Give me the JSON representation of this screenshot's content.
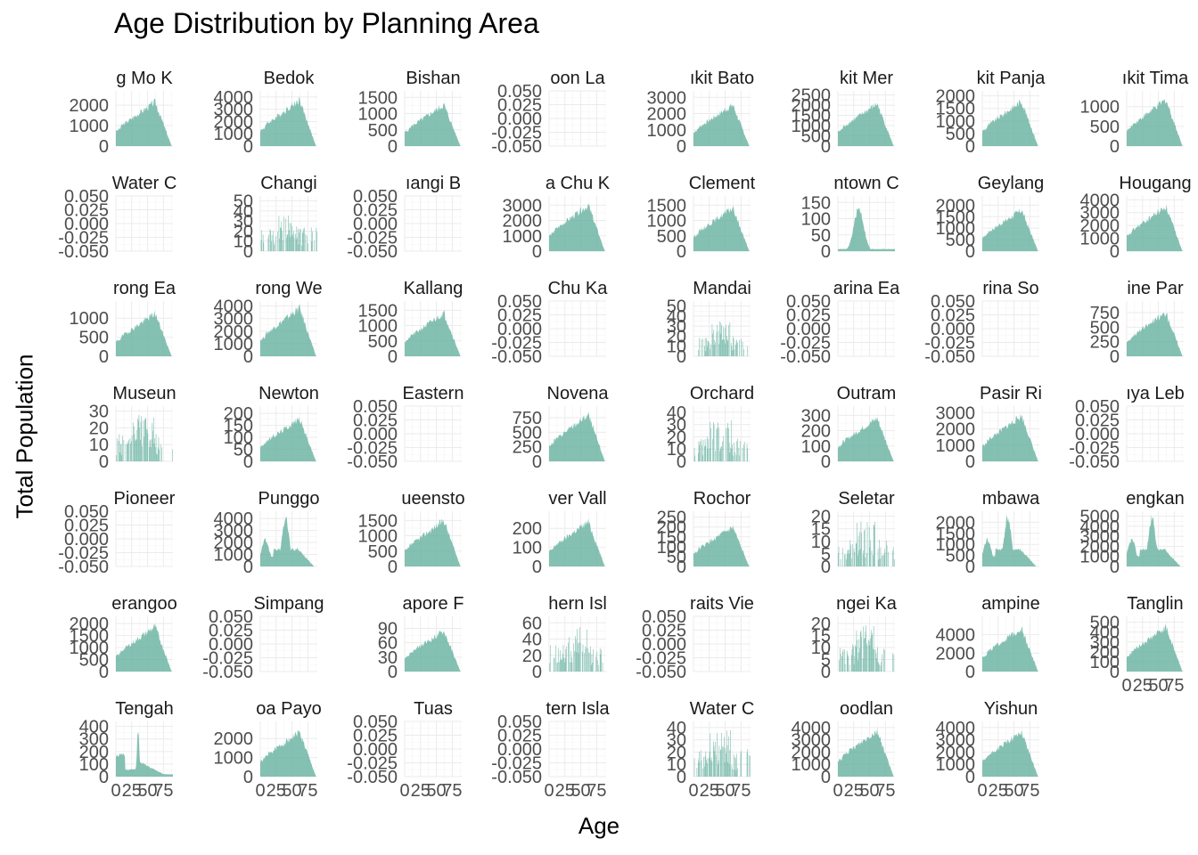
{
  "chart_data": {
    "type": "area",
    "title": "Age Distribution by Planning Area",
    "xlabel": "Age",
    "ylabel": "Total Population",
    "fill_color": "#66b2a0",
    "x_ticks": [
      "0",
      "25",
      "50",
      "75"
    ],
    "xlim": [
      0,
      90
    ],
    "grid": true,
    "facets": [
      {
        "name": "Ang Mo Kio",
        "strip": "g Mo K",
        "yticks": [
          "0",
          "1000",
          "2000"
        ],
        "ymax": 2700,
        "total": 2300,
        "shape": "broad"
      },
      {
        "name": "Bedok",
        "strip": "Bedok",
        "yticks": [
          "0",
          "1000",
          "2000",
          "3000",
          "4000"
        ],
        "ymax": 4500,
        "total": 4000,
        "shape": "broad"
      },
      {
        "name": "Bishan",
        "strip": "Bishan",
        "yticks": [
          "0",
          "500",
          "1000",
          "1500"
        ],
        "ymax": 1700,
        "total": 1350,
        "shape": "broad"
      },
      {
        "name": "Boon Lay",
        "strip": "oon La",
        "yticks": [
          "-0.050",
          "-0.025",
          "0.000",
          "0.025",
          "0.050"
        ],
        "ymax": 0,
        "total": 0,
        "shape": "empty"
      },
      {
        "name": "Bukit Batok",
        "strip": "ıkit Bato",
        "yticks": [
          "0",
          "1000",
          "2000",
          "3000"
        ],
        "ymax": 3400,
        "total": 2700,
        "shape": "broad"
      },
      {
        "name": "Bukit Merah",
        "strip": "kit Mer",
        "yticks": [
          "0",
          "500",
          "1000",
          "1500",
          "2000",
          "2500"
        ],
        "ymax": 2700,
        "total": 2200,
        "shape": "broad"
      },
      {
        "name": "Bukit Panjang",
        "strip": "kit Panja",
        "yticks": [
          "0",
          "500",
          "1000",
          "1500",
          "2000"
        ],
        "ymax": 2200,
        "total": 1900,
        "shape": "broad"
      },
      {
        "name": "Bukit Timah",
        "strip": "ıkit Tima",
        "yticks": [
          "0",
          "500",
          "1000"
        ],
        "ymax": 1400,
        "total": 1250,
        "shape": "broad"
      },
      {
        "name": "Central Water Catchment",
        "strip": "Water C",
        "yticks": [
          "-0.050",
          "-0.025",
          "0.000",
          "0.025",
          "0.050"
        ],
        "ymax": 0,
        "total": 0,
        "shape": "empty"
      },
      {
        "name": "Changi",
        "strip": "Changi",
        "yticks": [
          "0",
          "10",
          "20",
          "30",
          "40",
          "50"
        ],
        "ymax": 55,
        "total": 40,
        "shape": "spiky"
      },
      {
        "name": "Changi Bay",
        "strip": "ıangi B",
        "yticks": [
          "-0.050",
          "-0.025",
          "0.000",
          "0.025",
          "0.050"
        ],
        "ymax": 0,
        "total": 0,
        "shape": "empty"
      },
      {
        "name": "Choa Chu Kang",
        "strip": "a Chu K",
        "yticks": [
          "0",
          "1000",
          "2000",
          "3000"
        ],
        "ymax": 3600,
        "total": 3200,
        "shape": "broad"
      },
      {
        "name": "Clementi",
        "strip": "Clement",
        "yticks": [
          "0",
          "500",
          "1000",
          "1500"
        ],
        "ymax": 1800,
        "total": 1500,
        "shape": "broad"
      },
      {
        "name": "Downtown Core",
        "strip": "ntown C",
        "yticks": [
          "0",
          "50",
          "100",
          "150"
        ],
        "ymax": 170,
        "total": 130,
        "shape": "young"
      },
      {
        "name": "Geylang",
        "strip": "Geylang",
        "yticks": [
          "0",
          "500",
          "1000",
          "1500",
          "2000"
        ],
        "ymax": 2400,
        "total": 1900,
        "shape": "broad"
      },
      {
        "name": "Hougang",
        "strip": "Hougang",
        "yticks": [
          "0",
          "1000",
          "2000",
          "3000",
          "4000"
        ],
        "ymax": 4300,
        "total": 3700,
        "shape": "broad"
      },
      {
        "name": "Jurong East",
        "strip": "rong Ea",
        "yticks": [
          "0",
          "500",
          "1000"
        ],
        "ymax": 1450,
        "total": 1200,
        "shape": "broad"
      },
      {
        "name": "Jurong West",
        "strip": "rong We",
        "yticks": [
          "0",
          "1000",
          "2000",
          "3000",
          "4000"
        ],
        "ymax": 4400,
        "total": 4100,
        "shape": "broad"
      },
      {
        "name": "Kallang",
        "strip": "Kallang",
        "yticks": [
          "0",
          "500",
          "1000",
          "1500"
        ],
        "ymax": 1800,
        "total": 1500,
        "shape": "broad"
      },
      {
        "name": "Lim Chu Kang",
        "strip": "Chu Ka",
        "yticks": [
          "-0.050",
          "-0.025",
          "0.000",
          "0.025",
          "0.050"
        ],
        "ymax": 0,
        "total": 0,
        "shape": "empty"
      },
      {
        "name": "Mandai",
        "strip": "Mandai",
        "yticks": [
          "0",
          "10",
          "20",
          "30",
          "40",
          "50"
        ],
        "ymax": 55,
        "total": 35,
        "shape": "spiky"
      },
      {
        "name": "Marina East",
        "strip": "arina Ea",
        "yticks": [
          "-0.050",
          "-0.025",
          "0.000",
          "0.025",
          "0.050"
        ],
        "ymax": 0,
        "total": 0,
        "shape": "empty"
      },
      {
        "name": "Marina South",
        "strip": "rina So",
        "yticks": [
          "-0.050",
          "-0.025",
          "0.000",
          "0.025",
          "0.050"
        ],
        "ymax": 0,
        "total": 0,
        "shape": "empty"
      },
      {
        "name": "Marine Parade",
        "strip": "ine Par",
        "yticks": [
          "0",
          "250",
          "500",
          "750"
        ],
        "ymax": 950,
        "total": 800,
        "shape": "broad"
      },
      {
        "name": "Museum",
        "strip": "Museun",
        "yticks": [
          "0",
          "10",
          "20",
          "30"
        ],
        "ymax": 33,
        "total": 28,
        "shape": "spiky"
      },
      {
        "name": "Newton",
        "strip": "Newton",
        "yticks": [
          "0",
          "50",
          "100",
          "150",
          "200"
        ],
        "ymax": 230,
        "total": 190,
        "shape": "broad"
      },
      {
        "name": "North-Eastern Islands",
        "strip": "Eastern",
        "yticks": [
          "-0.050",
          "-0.025",
          "0.000",
          "0.025",
          "0.050"
        ],
        "ymax": 0,
        "total": 0,
        "shape": "empty"
      },
      {
        "name": "Novena",
        "strip": "Novena",
        "yticks": [
          "0",
          "250",
          "500",
          "750"
        ],
        "ymax": 950,
        "total": 850,
        "shape": "broad"
      },
      {
        "name": "Orchard",
        "strip": "Orchard",
        "yticks": [
          "0",
          "10",
          "20",
          "30",
          "40"
        ],
        "ymax": 45,
        "total": 35,
        "shape": "spiky"
      },
      {
        "name": "Outram",
        "strip": "Outram",
        "yticks": [
          "0",
          "100",
          "200",
          "300"
        ],
        "ymax": 360,
        "total": 300,
        "shape": "broad"
      },
      {
        "name": "Pasir Ris",
        "strip": "Pasir Ri",
        "yticks": [
          "0",
          "1000",
          "2000",
          "3000"
        ],
        "ymax": 3400,
        "total": 3000,
        "shape": "broad"
      },
      {
        "name": "Paya Lebar",
        "strip": "ıya Leb",
        "yticks": [
          "-0.050",
          "-0.025",
          "0.000",
          "0.025",
          "0.050"
        ],
        "ymax": 0,
        "total": 0,
        "shape": "empty"
      },
      {
        "name": "Pioneer",
        "strip": "Pioneer",
        "yticks": [
          "-0.050",
          "-0.025",
          "0.000",
          "0.025",
          "0.050"
        ],
        "ymax": 0,
        "total": 0,
        "shape": "empty"
      },
      {
        "name": "Punggol",
        "strip": "Punggo",
        "yticks": [
          "0",
          "1000",
          "2000",
          "3000",
          "4000"
        ],
        "ymax": 4600,
        "total": 4000,
        "shape": "family"
      },
      {
        "name": "Queenstown",
        "strip": "ueensto",
        "yticks": [
          "0",
          "500",
          "1000",
          "1500"
        ],
        "ymax": 1800,
        "total": 1600,
        "shape": "broad"
      },
      {
        "name": "River Valley",
        "strip": "ver Vall",
        "yticks": [
          "0",
          "100",
          "200"
        ],
        "ymax": 290,
        "total": 250,
        "shape": "broad"
      },
      {
        "name": "Rochor",
        "strip": "Rochor",
        "yticks": [
          "0",
          "50",
          "100",
          "150",
          "200",
          "250"
        ],
        "ymax": 280,
        "total": 210,
        "shape": "broad"
      },
      {
        "name": "Seletar",
        "strip": "Seletar",
        "yticks": [
          "0",
          "5",
          "10",
          "15",
          "20"
        ],
        "ymax": 22,
        "total": 18,
        "shape": "spiky"
      },
      {
        "name": "Sembawang",
        "strip": "mbawa",
        "yticks": [
          "0",
          "500",
          "1000",
          "1500",
          "2000"
        ],
        "ymax": 2500,
        "total": 2200,
        "shape": "family"
      },
      {
        "name": "Sengkang",
        "strip": "engkan",
        "yticks": [
          "0",
          "1000",
          "2000",
          "3000",
          "4000",
          "5000"
        ],
        "ymax": 5500,
        "total": 4800,
        "shape": "family"
      },
      {
        "name": "Serangoon",
        "strip": "erangoo",
        "yticks": [
          "0",
          "500",
          "1000",
          "1500",
          "2000"
        ],
        "ymax": 2300,
        "total": 2000,
        "shape": "broad"
      },
      {
        "name": "Simpang",
        "strip": "Simpang",
        "yticks": [
          "-0.050",
          "-0.025",
          "0.000",
          "0.025",
          "0.050"
        ],
        "ymax": 0,
        "total": 0,
        "shape": "empty"
      },
      {
        "name": "Singapore River",
        "strip": "apore F",
        "yticks": [
          "0",
          "30",
          "60",
          "90"
        ],
        "ymax": 115,
        "total": 90,
        "shape": "broad"
      },
      {
        "name": "Southern Islands",
        "strip": "hern Isl",
        "yticks": [
          "0",
          "20",
          "40",
          "60"
        ],
        "ymax": 68,
        "total": 55,
        "shape": "spiky"
      },
      {
        "name": "Straits View",
        "strip": "raits Vie",
        "yticks": [
          "-0.050",
          "-0.025",
          "0.000",
          "0.025",
          "0.050"
        ],
        "ymax": 0,
        "total": 0,
        "shape": "empty"
      },
      {
        "name": "Sungei Kadut",
        "strip": "ngei Ka",
        "yticks": [
          "0",
          "5",
          "10",
          "15",
          "20"
        ],
        "ymax": 23,
        "total": 20,
        "shape": "spiky"
      },
      {
        "name": "Tampines",
        "strip": "ampine",
        "yticks": [
          "0",
          "2000",
          "4000"
        ],
        "ymax": 6000,
        "total": 5000,
        "shape": "broad"
      },
      {
        "name": "Tanglin",
        "strip": "Tanglin",
        "yticks": [
          "0",
          "100",
          "200",
          "300",
          "400",
          "500"
        ],
        "ymax": 560,
        "total": 480,
        "shape": "broad"
      },
      {
        "name": "Tengah",
        "strip": "Tengah",
        "yticks": [
          "0",
          "100",
          "200",
          "300",
          "400"
        ],
        "ymax": 440,
        "total": 380,
        "shape": "tengah"
      },
      {
        "name": "Toa Payoh",
        "strip": "oa Payo",
        "yticks": [
          "0",
          "1000",
          "2000"
        ],
        "ymax": 2900,
        "total": 2500,
        "shape": "broad"
      },
      {
        "name": "Tuas",
        "strip": "Tuas",
        "yticks": [
          "-0.050",
          "-0.025",
          "0.000",
          "0.025",
          "0.050"
        ],
        "ymax": 0,
        "total": 0,
        "shape": "empty"
      },
      {
        "name": "Western Islands",
        "strip": "tern Isla",
        "yticks": [
          "-0.050",
          "-0.025",
          "0.000",
          "0.025",
          "0.050"
        ],
        "ymax": 0,
        "total": 0,
        "shape": "empty"
      },
      {
        "name": "Western Water Catchment",
        "strip": "Water C",
        "yticks": [
          "0",
          "10",
          "20",
          "30",
          "40"
        ],
        "ymax": 45,
        "total": 38,
        "shape": "spiky"
      },
      {
        "name": "Woodlands",
        "strip": "oodlan",
        "yticks": [
          "0",
          "1000",
          "2000",
          "3000",
          "4000"
        ],
        "ymax": 4500,
        "total": 4000,
        "shape": "broad"
      },
      {
        "name": "Yishun",
        "strip": "Yishun",
        "yticks": [
          "0",
          "1000",
          "2000",
          "3000",
          "4000"
        ],
        "ymax": 4500,
        "total": 3900,
        "shape": "broad"
      }
    ]
  }
}
